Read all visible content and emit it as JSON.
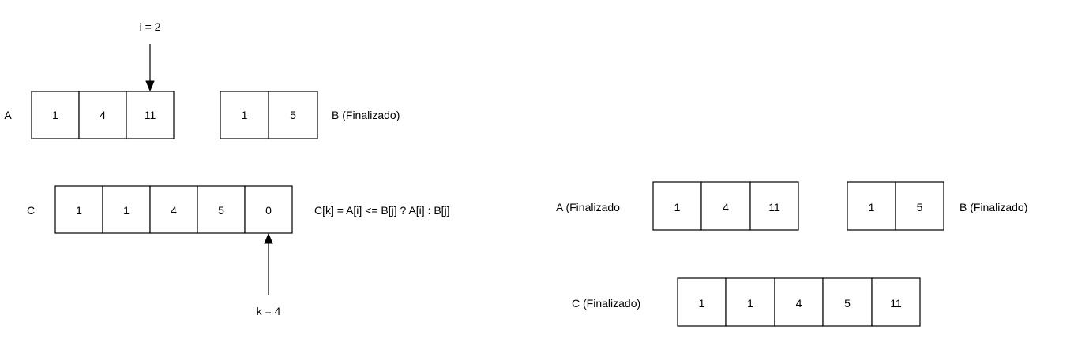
{
  "left_state": {
    "array_a": {
      "label": "A",
      "cells": [
        "1",
        "4",
        "11"
      ]
    },
    "array_b": {
      "label": "B (Finalizado)",
      "cells": [
        "1",
        "5"
      ]
    },
    "array_c": {
      "label": "C",
      "cells": [
        "1",
        "1",
        "4",
        "5",
        "0"
      ]
    },
    "pointer_i": {
      "label": "i = 2"
    },
    "pointer_k": {
      "label": "k = 4"
    },
    "formula": "C[k] = A[i] <= B[j] ? A[i] : B[j]"
  },
  "right_state": {
    "array_a": {
      "label": "A (Finalizado",
      "cells": [
        "1",
        "4",
        "11"
      ]
    },
    "array_b": {
      "label": "B (Finalizado)",
      "cells": [
        "1",
        "5"
      ]
    },
    "array_c": {
      "label": "C (Finalizado)",
      "cells": [
        "1",
        "1",
        "4",
        "5",
        "11"
      ]
    }
  }
}
